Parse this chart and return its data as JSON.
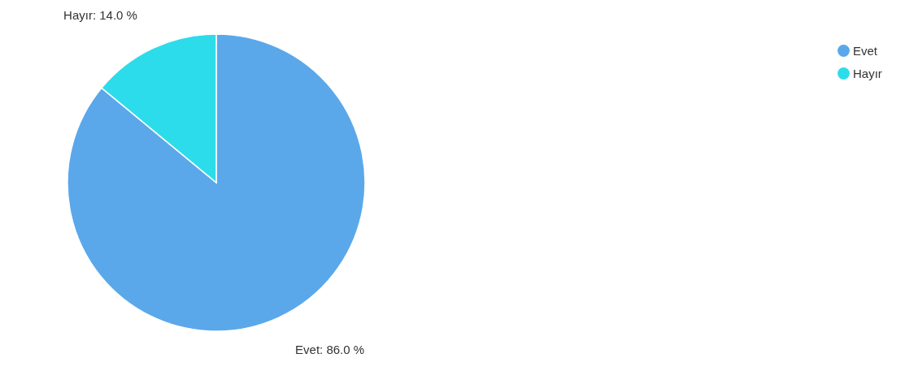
{
  "chart_data": {
    "type": "pie",
    "categories": [
      "Evet",
      "Hayır"
    ],
    "values": [
      86.0,
      14.0
    ],
    "colors": [
      "#5aa8ea",
      "#2ddcea"
    ],
    "value_labels": [
      "Evet: 86.0 %",
      "Hayır: 14.0 %"
    ],
    "legend": "top right"
  }
}
